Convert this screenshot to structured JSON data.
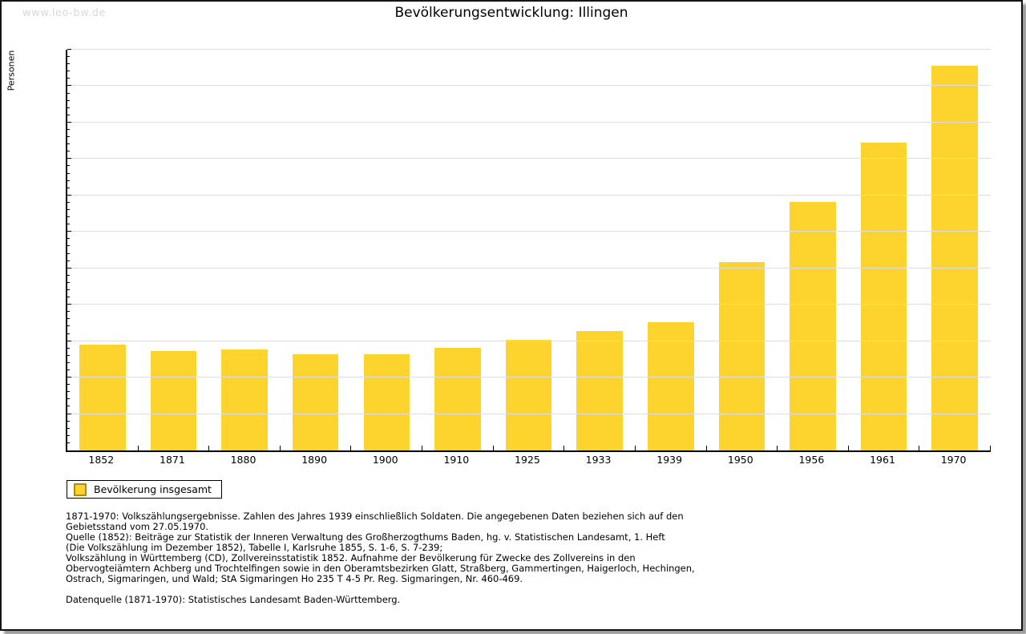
{
  "page": {
    "watermark": "www.leo-bw.de",
    "title": "Bevölkerungsentwicklung: Illingen"
  },
  "chart_data": {
    "type": "bar",
    "title": "Bevölkerungsentwicklung: Illingen",
    "xlabel": "",
    "ylabel": "Personen",
    "categories": [
      "1852",
      "1871",
      "1880",
      "1890",
      "1900",
      "1910",
      "1925",
      "1933",
      "1939",
      "1950",
      "1956",
      "1961",
      "1970"
    ],
    "values": [
      1450,
      1360,
      1390,
      1315,
      1320,
      1405,
      1515,
      1640,
      1765,
      2590,
      3415,
      4220,
      5285
    ],
    "ylim": [
      0,
      5500
    ],
    "yticks": [
      0,
      500,
      1000,
      1500,
      2000,
      2500,
      3000,
      3500,
      4000,
      4500,
      5000,
      5500
    ],
    "minor_tick_step": 100,
    "grid": true,
    "legend": {
      "label": "Bevölkerung insgesamt",
      "position": "bottom-left"
    },
    "colors": {
      "bar": "#FDD42E",
      "legend_swatch_border": "#B8860B",
      "gridline": "#DDDDDD",
      "axis": "#000000",
      "watermark": "#D9D9D9"
    }
  },
  "footnotes": {
    "lines": [
      "1871-1970: Volkszählungsergebnisse. Zahlen des Jahres 1939 einschließlich Soldaten. Die angegebenen Daten beziehen sich auf den",
      "Gebietsstand vom 27.05.1970.",
      "Quelle (1852): Beiträge zur Statistik der Inneren Verwaltung des Großherzogthums Baden, hg. v. Statistischen Landesamt, 1. Heft",
      "(Die Volkszählung im Dezember 1852), Tabelle I, Karlsruhe 1855, S. 1-6, S. 7-239;",
      "Volkszählung in Württemberg (CD), Zollvereinsstatistik 1852. Aufnahme der Bevölkerung für Zwecke des Zollvereins in den",
      "Obervogteiämtern Achberg und Trochtelfingen sowie in den Oberamtsbezirken Glatt, Straßberg, Gammertingen, Haigerloch, Hechingen,",
      "Ostrach, Sigmaringen, und Wald; StA Sigmaringen Ho 235 T 4-5 Pr. Reg. Sigmaringen, Nr. 460-469."
    ],
    "datasource": "Datenquelle (1871-1970): Statistisches Landesamt Baden-Württemberg."
  }
}
